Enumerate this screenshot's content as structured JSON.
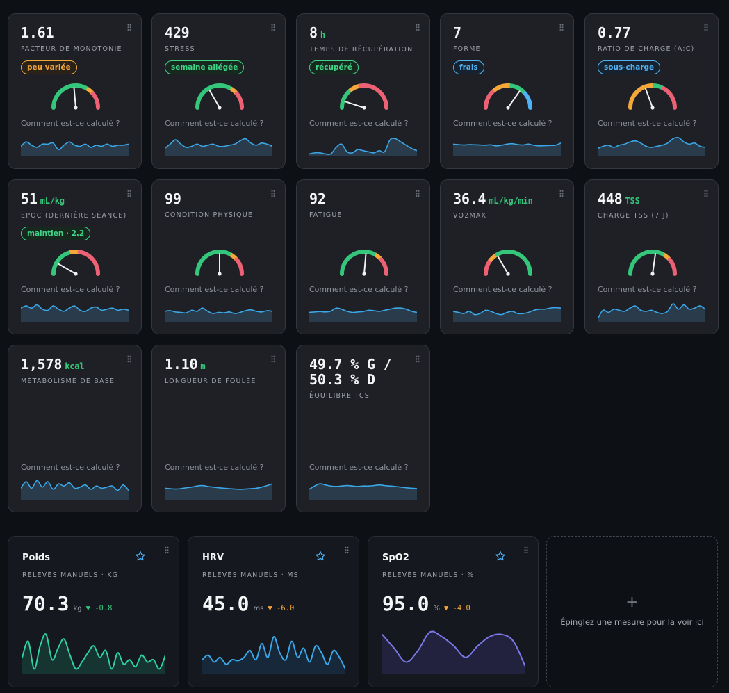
{
  "colors": {
    "green": "#34c77b",
    "orange": "#f5a83a",
    "red": "#ec6173",
    "blue": "#4fb2f5",
    "spark_line": "#3aa8e8",
    "purple": "#7b78e8",
    "teal": "#2fd0a6"
  },
  "link_text": "Comment est-ce calculé ?",
  "metrics": [
    {
      "value": "1.61",
      "unit": "",
      "label": "FACTEUR DE MONOTONIE",
      "badge": "peu variée",
      "badge_color": "orange",
      "gauge": "gyr",
      "needle_deg": 85,
      "spark": [
        0.4,
        0.6,
        0.45,
        0.35,
        0.5,
        0.5,
        0.55,
        0.25,
        0.45,
        0.6,
        0.45,
        0.4,
        0.5,
        0.35,
        0.45,
        0.4,
        0.5,
        0.4,
        0.45,
        0.45,
        0.5
      ]
    },
    {
      "value": "429",
      "unit": "",
      "label": "STRESS",
      "badge": "semaine allégée",
      "badge_color": "green",
      "gauge": "gyr",
      "needle_deg": 60,
      "spark": [
        0.3,
        0.5,
        0.7,
        0.5,
        0.35,
        0.4,
        0.5,
        0.4,
        0.45,
        0.5,
        0.4,
        0.4,
        0.45,
        0.5,
        0.65,
        0.75,
        0.55,
        0.45,
        0.55,
        0.5,
        0.4
      ]
    },
    {
      "value": "8",
      "unit": "h",
      "label": "TEMPS DE RÉCUPÉRATION",
      "badge": "récupéré",
      "badge_color": "green",
      "gauge": "gyr_small",
      "needle_deg": 18,
      "spark": [
        0.05,
        0.1,
        0.1,
        0.05,
        0.05,
        0.35,
        0.5,
        0.15,
        0.1,
        0.25,
        0.2,
        0.15,
        0.1,
        0.2,
        0.15,
        0.7,
        0.75,
        0.6,
        0.45,
        0.3,
        0.2
      ]
    },
    {
      "value": "7",
      "unit": "",
      "label": "FORME",
      "badge": "frais",
      "badge_color": "blue",
      "gauge": "ryb",
      "needle_deg": 125,
      "spark": [
        0.5,
        0.48,
        0.46,
        0.48,
        0.47,
        0.46,
        0.45,
        0.47,
        0.42,
        0.45,
        0.5,
        0.52,
        0.48,
        0.46,
        0.5,
        0.45,
        0.42,
        0.43,
        0.44,
        0.45,
        0.55
      ]
    },
    {
      "value": "0.77",
      "unit": "",
      "label": "RATIO DE CHARGE (A:C)",
      "badge": "sous-charge",
      "badge_color": "blue",
      "gauge": "ogr",
      "needle_deg": 70,
      "spark": [
        0.3,
        0.4,
        0.45,
        0.35,
        0.45,
        0.5,
        0.6,
        0.65,
        0.55,
        0.4,
        0.35,
        0.4,
        0.45,
        0.55,
        0.75,
        0.8,
        0.6,
        0.5,
        0.55,
        0.4,
        0.35
      ]
    },
    {
      "value": "51",
      "unit": "mL/kg",
      "label": "EPOC (DERNIÈRE SÉANCE)",
      "badge": "maintien · 2.2",
      "badge_color": "green",
      "gauge": "gyr_flat",
      "needle_deg": 30,
      "spark": [
        0.6,
        0.7,
        0.6,
        0.75,
        0.55,
        0.5,
        0.7,
        0.55,
        0.45,
        0.6,
        0.7,
        0.5,
        0.45,
        0.6,
        0.65,
        0.5,
        0.55,
        0.6,
        0.5,
        0.55,
        0.5
      ]
    },
    {
      "value": "99",
      "unit": "",
      "label": "CONDITION PHYSIQUE",
      "badge": "",
      "badge_color": "",
      "gauge": "gyr",
      "needle_deg": 90,
      "spark": [
        0.45,
        0.48,
        0.42,
        0.4,
        0.38,
        0.5,
        0.45,
        0.6,
        0.45,
        0.35,
        0.4,
        0.38,
        0.42,
        0.35,
        0.4,
        0.48,
        0.52,
        0.45,
        0.42,
        0.48,
        0.45
      ]
    },
    {
      "value": "92",
      "unit": "",
      "label": "FATIGUE",
      "badge": "",
      "badge_color": "",
      "gauge": "gyr",
      "needle_deg": 95,
      "spark": [
        0.4,
        0.42,
        0.44,
        0.42,
        0.46,
        0.6,
        0.55,
        0.45,
        0.4,
        0.42,
        0.44,
        0.5,
        0.48,
        0.45,
        0.5,
        0.55,
        0.6,
        0.6,
        0.55,
        0.45,
        0.4
      ]
    },
    {
      "value": "36.4",
      "unit": "mL/kg/min",
      "label": "VO2MAX",
      "badge": "",
      "badge_color": "",
      "gauge": "ryg",
      "needle_deg": 60,
      "spark": [
        0.45,
        0.4,
        0.35,
        0.45,
        0.3,
        0.35,
        0.5,
        0.45,
        0.35,
        0.3,
        0.4,
        0.45,
        0.35,
        0.35,
        0.4,
        0.5,
        0.55,
        0.55,
        0.6,
        0.62,
        0.6
      ]
    },
    {
      "value": "448",
      "unit": "TSS",
      "label": "CHARGE TSS (7 J)",
      "badge": "",
      "badge_color": "",
      "gauge": "gyr",
      "needle_deg": 98,
      "spark": [
        0.1,
        0.5,
        0.4,
        0.55,
        0.5,
        0.45,
        0.6,
        0.7,
        0.5,
        0.45,
        0.5,
        0.4,
        0.35,
        0.45,
        0.8,
        0.55,
        0.75,
        0.55,
        0.6,
        0.7,
        0.55
      ]
    },
    {
      "value": "1,578",
      "unit": "kcal",
      "label": "MÉTABOLISME DE BASE",
      "badge": "",
      "badge_color": "",
      "gauge": "",
      "needle_deg": 0,
      "spark": [
        0.5,
        0.8,
        0.5,
        0.85,
        0.55,
        0.8,
        0.45,
        0.7,
        0.6,
        0.75,
        0.5,
        0.55,
        0.65,
        0.45,
        0.6,
        0.5,
        0.55,
        0.6,
        0.4,
        0.65,
        0.4
      ]
    },
    {
      "value": "1.10",
      "unit": "m",
      "label": "LONGUEUR DE FOULÉE",
      "badge": "",
      "badge_color": "",
      "gauge": "",
      "needle_deg": 0,
      "spark": [
        0.5,
        0.48,
        0.46,
        0.48,
        0.52,
        0.55,
        0.6,
        0.62,
        0.58,
        0.55,
        0.52,
        0.5,
        0.48,
        0.46,
        0.45,
        0.46,
        0.48,
        0.5,
        0.55,
        0.62,
        0.7
      ]
    },
    {
      "value": "49.7 % G /\n50.3 % D",
      "unit": "",
      "label": "ÉQUILIBRE TCS",
      "badge": "",
      "badge_color": "",
      "gauge": "",
      "needle_deg": 0,
      "spark": [
        0.45,
        0.6,
        0.7,
        0.65,
        0.6,
        0.58,
        0.6,
        0.62,
        0.6,
        0.58,
        0.6,
        0.6,
        0.62,
        0.65,
        0.62,
        0.6,
        0.58,
        0.55,
        0.52,
        0.5,
        0.48
      ]
    }
  ],
  "widgets": [
    {
      "title": "Poids",
      "subtitle": "RELEVÉS MANUELS · KG",
      "value": "70.3",
      "unit": "kg",
      "delta": "▼ -0.8",
      "delta_color": "#34c77b",
      "line_color": "#2fd0a6",
      "fill_color": "#163530",
      "series": [
        0.35,
        0.7,
        0.1,
        0.6,
        0.85,
        0.3,
        0.55,
        0.75,
        0.4,
        0.1,
        0.25,
        0.45,
        0.6,
        0.35,
        0.5,
        0.1,
        0.45,
        0.2,
        0.3,
        0.15,
        0.4,
        0.25,
        0.3,
        0.1,
        0.4
      ]
    },
    {
      "title": "HRV",
      "subtitle": "RELEVÉS MANUELS · MS",
      "value": "45.0",
      "unit": "ms",
      "delta": "▼ -6.0",
      "delta_color": "#f5a83a",
      "line_color": "#3aa8e8",
      "fill_color": "#16283a",
      "series": [
        0.3,
        0.4,
        0.25,
        0.35,
        0.2,
        0.3,
        0.28,
        0.35,
        0.5,
        0.3,
        0.65,
        0.35,
        0.8,
        0.45,
        0.3,
        0.7,
        0.35,
        0.55,
        0.25,
        0.6,
        0.45,
        0.2,
        0.5,
        0.35,
        0.1
      ]
    },
    {
      "title": "SpO2",
      "subtitle": "RELEVÉS MANUELS · %",
      "value": "95.0",
      "unit": "%",
      "delta": "▼ -4.0",
      "delta_color": "#f5a83a",
      "line_color": "#7b78e8",
      "fill_color": "#22223e",
      "series": [
        0.85,
        0.55,
        0.25,
        0.5,
        0.9,
        0.8,
        0.6,
        0.35,
        0.6,
        0.8,
        0.85,
        0.7,
        0.15
      ]
    }
  ],
  "add_widget": {
    "plus": "+",
    "text": "Épinglez une mesure pour la voir ici"
  }
}
